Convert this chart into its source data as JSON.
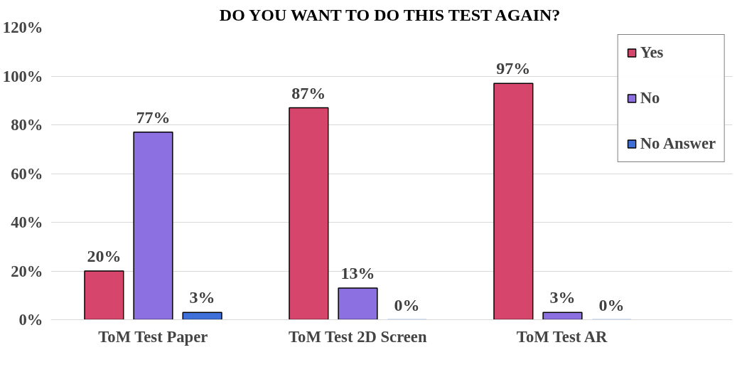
{
  "chart_data": {
    "type": "bar",
    "title": "DO YOU WANT TO DO THIS TEST AGAIN?",
    "categories": [
      "ToM Test Paper",
      "ToM Test 2D Screen",
      "ToM Test AR"
    ],
    "series": [
      {
        "name": "Yes",
        "color": "#d6456b",
        "values": [
          20,
          87,
          97
        ],
        "value_labels": [
          "20%",
          "87%",
          "97%"
        ]
      },
      {
        "name": "No",
        "color": "#8c6fe0",
        "values": [
          77,
          13,
          3
        ],
        "value_labels": [
          "77%",
          "13%",
          "3%"
        ]
      },
      {
        "name": "No Answer",
        "color": "#3f6fd8",
        "values": [
          3,
          0,
          0
        ],
        "value_labels": [
          "3%",
          "0%",
          "0%"
        ]
      }
    ],
    "ylim": [
      0,
      120
    ],
    "yticks": [
      {
        "value": 0,
        "label": "0%"
      },
      {
        "value": 20,
        "label": "20%"
      },
      {
        "value": 40,
        "label": "40%"
      },
      {
        "value": 60,
        "label": "60%"
      },
      {
        "value": 80,
        "label": "80%"
      },
      {
        "value": 100,
        "label": "100%"
      },
      {
        "value": 120,
        "label": "120%"
      }
    ],
    "grid": "y",
    "legend": "top right"
  }
}
